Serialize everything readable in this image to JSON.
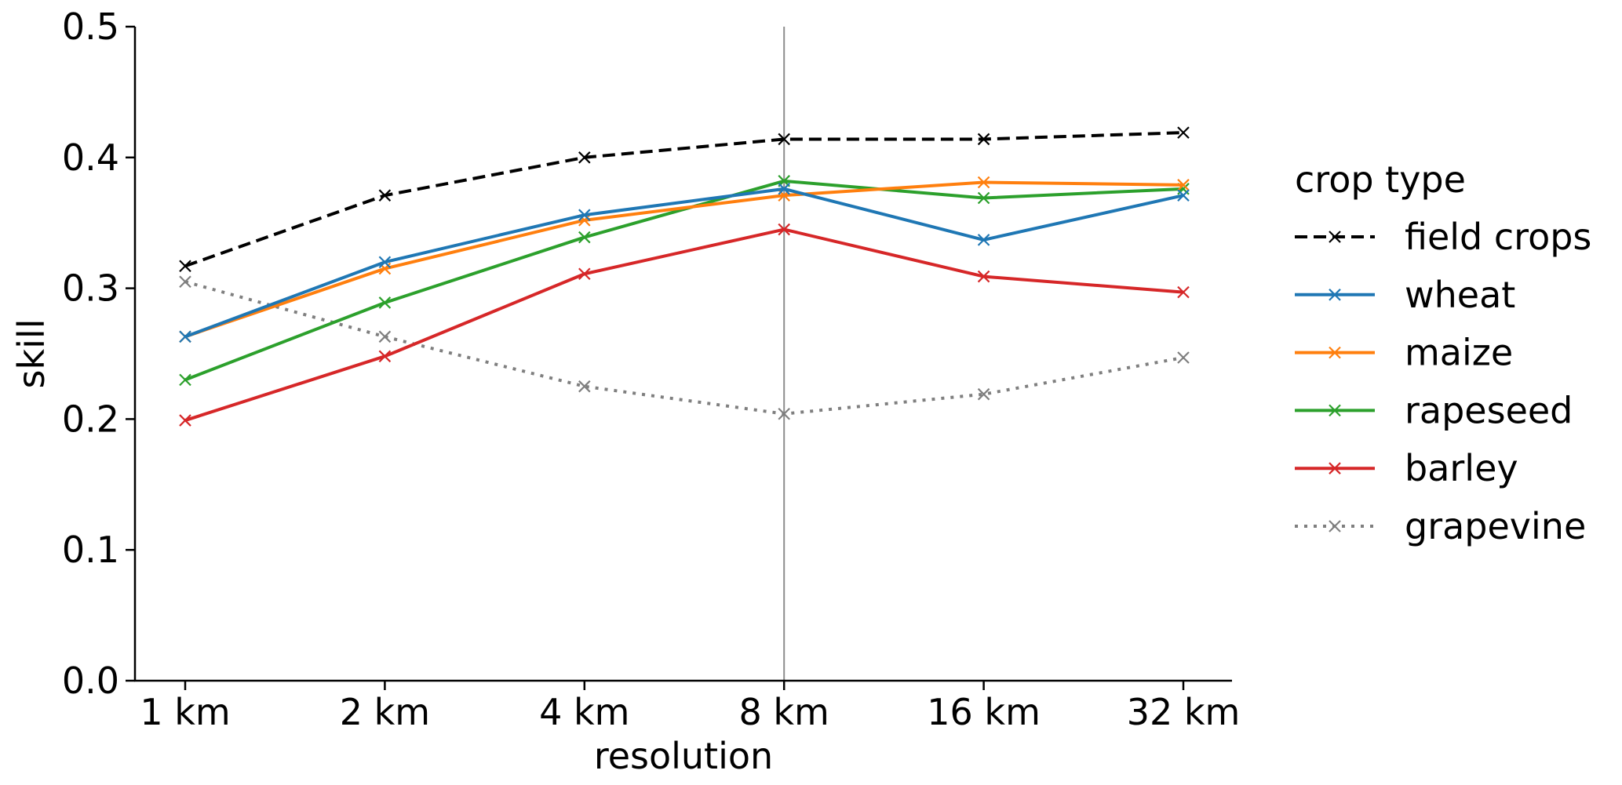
{
  "chart_data": {
    "type": "line",
    "title": "",
    "xlabel": "resolution",
    "ylabel": "skill",
    "categories": [
      "1 km",
      "2 km",
      "4 km",
      "8 km",
      "16 km",
      "32 km"
    ],
    "ylim": [
      0.0,
      0.5
    ],
    "yticks": [
      "0.0",
      "0.1",
      "0.2",
      "0.3",
      "0.4",
      "0.5"
    ],
    "grid": false,
    "reference_line_category": "8 km",
    "legend": {
      "title": "crop type",
      "placement": "right outside"
    },
    "series": [
      {
        "name": "field crops",
        "color": "#000000",
        "style": "dashed",
        "values": [
          0.317,
          0.371,
          0.4,
          0.414,
          0.414,
          0.419
        ]
      },
      {
        "name": "wheat",
        "color": "#1f77b4",
        "style": "solid",
        "values": [
          0.263,
          0.32,
          0.356,
          0.376,
          0.337,
          0.371
        ]
      },
      {
        "name": "maize",
        "color": "#ff7f0e",
        "style": "solid",
        "values": [
          0.263,
          0.315,
          0.352,
          0.371,
          0.381,
          0.379
        ]
      },
      {
        "name": "rapeseed",
        "color": "#2ca02c",
        "style": "solid",
        "values": [
          0.23,
          0.289,
          0.339,
          0.382,
          0.369,
          0.376
        ]
      },
      {
        "name": "barley",
        "color": "#d62728",
        "style": "solid",
        "values": [
          0.199,
          0.248,
          0.311,
          0.345,
          0.309,
          0.297
        ]
      },
      {
        "name": "grapevine",
        "color": "#7f7f7f",
        "style": "dotted",
        "values": [
          0.305,
          0.263,
          0.225,
          0.204,
          0.219,
          0.247
        ]
      }
    ]
  }
}
